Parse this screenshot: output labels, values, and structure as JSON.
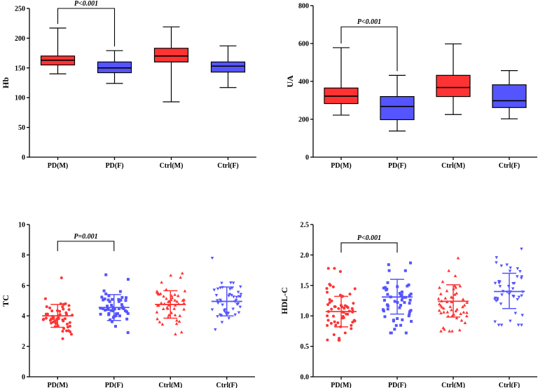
{
  "chart_data": [
    {
      "type": "box",
      "ylabel": "Hb",
      "ylim": [
        0,
        250
      ],
      "yticks": [
        0,
        50,
        100,
        150,
        200,
        250
      ],
      "categories": [
        "PD(M)",
        "PD(F)",
        "Ctrl(M)",
        "Ctrl(F)"
      ],
      "colors": [
        "#ff3333",
        "#5555ff",
        "#ff3333",
        "#5555ff"
      ],
      "boxes": [
        {
          "min": 140,
          "q1": 155,
          "median": 163,
          "q3": 170,
          "max": 217
        },
        {
          "min": 124,
          "q1": 142,
          "median": 150,
          "q3": 160,
          "max": 179
        },
        {
          "min": 93,
          "q1": 160,
          "median": 170,
          "q3": 183,
          "max": 219
        },
        {
          "min": 117,
          "q1": 143,
          "median": 153,
          "q3": 160,
          "max": 187
        }
      ],
      "annotation": {
        "text": "P<0.001",
        "from": 0,
        "to": 1,
        "y": 250
      }
    },
    {
      "type": "box",
      "ylabel": "UA",
      "ylim": [
        0,
        800
      ],
      "yticks": [
        0,
        200,
        400,
        600,
        800
      ],
      "categories": [
        "PD(M)",
        "PD(F)",
        "Ctrl(M)",
        "Ctrl(F)"
      ],
      "colors": [
        "#ff3333",
        "#5555ff",
        "#ff3333",
        "#5555ff"
      ],
      "boxes": [
        {
          "min": 222,
          "q1": 283,
          "median": 322,
          "q3": 365,
          "max": 578
        },
        {
          "min": 138,
          "q1": 198,
          "median": 268,
          "q3": 320,
          "max": 432
        },
        {
          "min": 225,
          "q1": 320,
          "median": 368,
          "q3": 432,
          "max": 598
        },
        {
          "min": 202,
          "q1": 262,
          "median": 298,
          "q3": 382,
          "max": 457
        }
      ],
      "annotation": {
        "text": "P<0.001",
        "from": 0,
        "to": 1,
        "y": 688
      }
    },
    {
      "type": "scatter",
      "ylabel": "TC",
      "ylim": [
        0,
        10
      ],
      "yticks": [
        0,
        2,
        4,
        6,
        8,
        10
      ],
      "categories": [
        "PD(M)",
        "PD(F)",
        "Ctrl(M)",
        "Ctrl(F)"
      ],
      "colors": [
        "#ff3333",
        "#5555ff",
        "#ff3333",
        "#5555ff"
      ],
      "markers": [
        "circle",
        "square",
        "triangle",
        "triangle-down"
      ],
      "groups": [
        {
          "mean": 4.0,
          "sd_low": 3.25,
          "sd_high": 4.75,
          "center": 3.95,
          "spread": 0.58,
          "min": 2.5,
          "max": 6.5,
          "n": 58
        },
        {
          "mean": 4.55,
          "sd_low": 3.7,
          "sd_high": 5.4,
          "center": 4.55,
          "spread": 0.7,
          "min": 2.9,
          "max": 6.7,
          "n": 52
        },
        {
          "mean": 4.75,
          "sd_low": 3.85,
          "sd_high": 5.65,
          "center": 4.75,
          "spread": 0.75,
          "min": 2.8,
          "max": 6.8,
          "n": 52
        },
        {
          "mean": 4.95,
          "sd_low": 4.0,
          "sd_high": 5.9,
          "center": 4.95,
          "spread": 0.8,
          "min": 3.1,
          "max": 7.8,
          "n": 48
        }
      ],
      "annotation": {
        "text": "P=0.001",
        "from": 0,
        "to": 1,
        "y": 8.9
      }
    },
    {
      "type": "scatter",
      "ylabel": "HDL-C",
      "ylim": [
        0,
        2.5
      ],
      "yticks": [
        0.0,
        0.5,
        1.0,
        1.5,
        2.0,
        2.5
      ],
      "ytick_labels": [
        "0.0",
        "0.5",
        "1.0",
        "1.5",
        "2.0",
        "2.5"
      ],
      "categories": [
        "PD(M)",
        "PD(F)",
        "Ctrl(M)",
        "Ctrl(F)"
      ],
      "colors": [
        "#ff3333",
        "#5555ff",
        "#ff3333",
        "#5555ff"
      ],
      "markers": [
        "circle",
        "square",
        "triangle",
        "triangle-down"
      ],
      "groups": [
        {
          "mean": 1.07,
          "sd_low": 0.82,
          "sd_high": 1.32,
          "center": 1.07,
          "spread": 0.22,
          "min": 0.6,
          "max": 1.78,
          "n": 60
        },
        {
          "mean": 1.31,
          "sd_low": 1.03,
          "sd_high": 1.6,
          "center": 1.31,
          "spread": 0.26,
          "min": 0.72,
          "max": 1.87,
          "n": 52
        },
        {
          "mean": 1.24,
          "sd_low": 0.98,
          "sd_high": 1.51,
          "center": 1.24,
          "spread": 0.25,
          "min": 0.75,
          "max": 1.95,
          "n": 52
        },
        {
          "mean": 1.4,
          "sd_low": 1.12,
          "sd_high": 1.7,
          "center": 1.4,
          "spread": 0.27,
          "min": 0.85,
          "max": 2.1,
          "n": 46
        }
      ],
      "annotation": {
        "text": "P<0.001",
        "from": 0,
        "to": 1,
        "y": 2.2
      }
    }
  ]
}
